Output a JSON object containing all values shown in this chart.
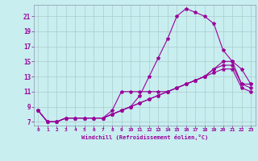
{
  "xlabel": "Windchill (Refroidissement éolien,°C)",
  "bg_color": "#c8eef0",
  "grid_color": "#aacccc",
  "line_color": "#990099",
  "xlim": [
    -0.5,
    23.5
  ],
  "ylim": [
    6.5,
    22.5
  ],
  "xticks": [
    0,
    1,
    2,
    3,
    4,
    5,
    6,
    7,
    8,
    9,
    10,
    11,
    12,
    13,
    14,
    15,
    16,
    17,
    18,
    19,
    20,
    21,
    22,
    23
  ],
  "yticks": [
    7,
    9,
    11,
    13,
    15,
    17,
    19,
    21
  ],
  "line1_x": [
    0,
    1,
    2,
    3,
    4,
    5,
    6,
    7,
    8,
    9,
    10,
    11,
    12,
    13,
    14,
    15,
    16,
    17,
    18,
    19,
    20,
    21,
    22,
    23
  ],
  "line1_y": [
    8.5,
    7.0,
    7.0,
    7.5,
    7.5,
    7.5,
    7.5,
    7.5,
    8.0,
    8.5,
    9.0,
    10.5,
    13.0,
    15.5,
    18.0,
    21.0,
    22.0,
    21.5,
    21.0,
    20.0,
    16.5,
    15.0,
    14.0,
    12.0
  ],
  "line2_x": [
    0,
    1,
    2,
    3,
    4,
    5,
    6,
    7,
    8,
    9,
    10,
    11,
    12,
    13,
    14,
    15,
    16,
    17,
    18,
    19,
    20,
    21,
    22,
    23
  ],
  "line2_y": [
    8.5,
    7.0,
    7.0,
    7.5,
    7.5,
    7.5,
    7.5,
    7.5,
    8.5,
    11.0,
    11.0,
    11.0,
    11.0,
    11.0,
    11.0,
    11.5,
    12.0,
    12.5,
    13.0,
    14.0,
    15.0,
    15.0,
    12.0,
    12.0
  ],
  "line3_x": [
    0,
    1,
    2,
    3,
    4,
    5,
    6,
    7,
    8,
    9,
    10,
    11,
    12,
    13,
    14,
    15,
    16,
    17,
    18,
    19,
    20,
    21,
    22,
    23
  ],
  "line3_y": [
    8.5,
    7.0,
    7.0,
    7.5,
    7.5,
    7.5,
    7.5,
    7.5,
    8.0,
    8.5,
    9.0,
    9.5,
    10.0,
    10.5,
    11.0,
    11.5,
    12.0,
    12.5,
    13.0,
    14.0,
    14.5,
    14.5,
    12.0,
    11.5
  ],
  "line4_x": [
    0,
    1,
    2,
    3,
    4,
    5,
    6,
    7,
    8,
    9,
    10,
    11,
    12,
    13,
    14,
    15,
    16,
    17,
    18,
    19,
    20,
    21,
    22,
    23
  ],
  "line4_y": [
    8.5,
    7.0,
    7.0,
    7.5,
    7.5,
    7.5,
    7.5,
    7.5,
    8.0,
    8.5,
    9.0,
    9.5,
    10.0,
    10.5,
    11.0,
    11.5,
    12.0,
    12.5,
    13.0,
    13.5,
    14.0,
    14.0,
    11.5,
    11.0
  ]
}
